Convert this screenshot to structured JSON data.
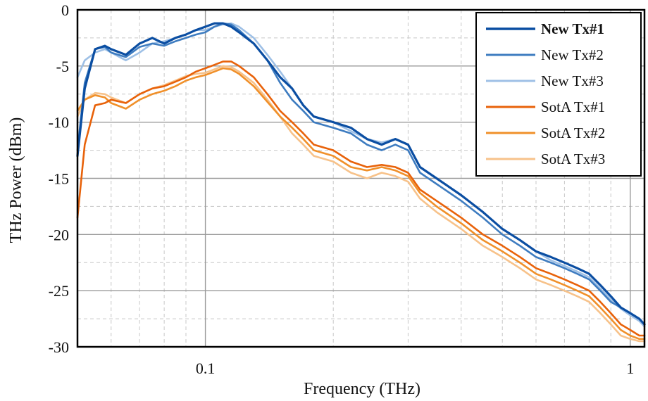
{
  "chart_data": {
    "type": "line",
    "xlabel": "Frequency (THz)",
    "ylabel": "THz Power (dBm)",
    "xscale": "log",
    "xlim": [
      0.05,
      1.08
    ],
    "ylim": [
      -30,
      0
    ],
    "x_major_ticks": [
      0.1,
      1
    ],
    "x_tick_labels": [
      "0.1",
      "1"
    ],
    "y_ticks": [
      0,
      -5,
      -10,
      -15,
      -20,
      -25,
      -30
    ],
    "y_tick_labels": [
      "0",
      "-5",
      "-10",
      "-15",
      "-20",
      "-25",
      "-30"
    ],
    "grid": true,
    "legend_position": "top-right",
    "colors": {
      "New Tx#1": "#0b4ea2",
      "New Tx#2": "#3e7cc0",
      "New Tx#3": "#9ec0e6",
      "SotA Tx#1": "#e8620a",
      "SotA Tx#2": "#f0902a",
      "SotA Tx#3": "#f7c28a"
    },
    "x": [
      0.05,
      0.052,
      0.055,
      0.058,
      0.06,
      0.065,
      0.07,
      0.075,
      0.08,
      0.085,
      0.09,
      0.095,
      0.1,
      0.105,
      0.11,
      0.115,
      0.12,
      0.13,
      0.14,
      0.15,
      0.16,
      0.17,
      0.18,
      0.2,
      0.22,
      0.24,
      0.26,
      0.28,
      0.3,
      0.32,
      0.35,
      0.4,
      0.45,
      0.5,
      0.55,
      0.6,
      0.65,
      0.7,
      0.75,
      0.8,
      0.85,
      0.9,
      0.95,
      1.0,
      1.05,
      1.08
    ],
    "series": [
      {
        "name": "New Tx#1",
        "bold": true,
        "values": [
          -13,
          -7,
          -3.5,
          -3.2,
          -3.5,
          -4,
          -3,
          -2.5,
          -3,
          -2.5,
          -2.2,
          -1.8,
          -1.5,
          -1.2,
          -1.2,
          -1.5,
          -2,
          -3,
          -4.5,
          -6,
          -7,
          -8.5,
          -9.5,
          -10,
          -10.5,
          -11.5,
          -12,
          -11.5,
          -12,
          -14,
          -15,
          -16.5,
          -18,
          -19.5,
          -20.5,
          -21.5,
          -22,
          -22.5,
          -23,
          -23.5,
          -24.5,
          -25.5,
          -26.5,
          -27,
          -27.5,
          -28
        ]
      },
      {
        "name": "New Tx#2",
        "bold": false,
        "values": [
          -12.5,
          -6.5,
          -3.5,
          -3.3,
          -3.8,
          -4.2,
          -3.3,
          -3,
          -3.2,
          -2.8,
          -2.5,
          -2.2,
          -2,
          -1.5,
          -1.2,
          -1.3,
          -1.8,
          -3,
          -4.5,
          -6.5,
          -8,
          -9,
          -10,
          -10.5,
          -11,
          -12,
          -12.5,
          -12,
          -12.5,
          -14.5,
          -15.5,
          -17,
          -18.5,
          -20,
          -21,
          -22,
          -22.5,
          -23,
          -23.5,
          -24,
          -25,
          -26,
          -26.5,
          -27,
          -27.5,
          -28
        ]
      },
      {
        "name": "New Tx#3",
        "bold": false,
        "values": [
          -6,
          -4.5,
          -3.8,
          -3.5,
          -3.8,
          -4.5,
          -3.8,
          -3,
          -2.8,
          -2.5,
          -2.2,
          -1.8,
          -1.8,
          -1.5,
          -1.3,
          -1.2,
          -1.5,
          -2.5,
          -4,
          -5.5,
          -7,
          -8.5,
          -9.5,
          -10,
          -10.8,
          -11.5,
          -11.8,
          -11.5,
          -12,
          -14,
          -15,
          -16.5,
          -18,
          -19.5,
          -20.5,
          -21.5,
          -22.3,
          -22.8,
          -23.3,
          -23.8,
          -24.8,
          -25.8,
          -26.6,
          -27.2,
          -27.7,
          -28.2
        ]
      },
      {
        "name": "SotA Tx#1",
        "bold": false,
        "values": [
          -18.5,
          -12,
          -8.5,
          -8.3,
          -8,
          -8.3,
          -7.5,
          -7,
          -6.8,
          -6.4,
          -6,
          -5.5,
          -5.2,
          -4.9,
          -4.6,
          -4.6,
          -5,
          -6,
          -7.5,
          -9,
          -10,
          -11,
          -12,
          -12.5,
          -13.5,
          -14,
          -13.8,
          -14,
          -14.5,
          -16,
          -17,
          -18.5,
          -20,
          -21,
          -22,
          -23,
          -23.5,
          -24,
          -24.5,
          -25,
          -26,
          -27,
          -28,
          -28.5,
          -29,
          -29
        ]
      },
      {
        "name": "SotA Tx#2",
        "bold": false,
        "values": [
          -9,
          -8,
          -7.6,
          -7.8,
          -8.3,
          -8.8,
          -8,
          -7.5,
          -7.2,
          -6.8,
          -6.3,
          -6,
          -5.8,
          -5.5,
          -5.2,
          -5.3,
          -5.7,
          -6.8,
          -8.2,
          -9.5,
          -10.5,
          -11.5,
          -12.5,
          -13,
          -14,
          -14.3,
          -14,
          -14.3,
          -14.8,
          -16.3,
          -17.5,
          -19,
          -20.5,
          -21.5,
          -22.5,
          -23.5,
          -24,
          -24.5,
          -25,
          -25.5,
          -26.5,
          -27.5,
          -28.5,
          -29,
          -29.3,
          -29.3
        ]
      },
      {
        "name": "SotA Tx#3",
        "bold": false,
        "values": [
          -9.5,
          -8,
          -7.4,
          -7.5,
          -7.8,
          -8.3,
          -7.5,
          -7,
          -6.7,
          -6.3,
          -5.9,
          -5.7,
          -5.6,
          -5.3,
          -5,
          -5.1,
          -5.5,
          -6.5,
          -8,
          -9.5,
          -11,
          -12,
          -13,
          -13.5,
          -14.5,
          -15,
          -14.5,
          -14.8,
          -15.3,
          -16.8,
          -18,
          -19.5,
          -21,
          -22,
          -23,
          -24,
          -24.5,
          -25,
          -25.5,
          -26,
          -27,
          -28,
          -29,
          -29.3,
          -29.5,
          -29.5
        ]
      }
    ]
  }
}
